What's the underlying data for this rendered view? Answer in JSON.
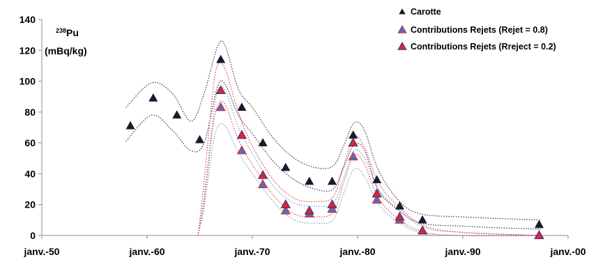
{
  "chart_data": {
    "type": "scatter",
    "title": "",
    "ylabel": {
      "isotope": "Pu",
      "mass_number": "238",
      "unit": "(mBq/kg)"
    },
    "xlabel": "",
    "xlim": [
      "1950-01",
      "2000-01"
    ],
    "ylim": [
      0,
      140
    ],
    "x_ticks": [
      "janv.-50",
      "janv.-60",
      "janv.-70",
      "janv.-80",
      "janv.-90",
      "janv.-00"
    ],
    "y_ticks": [
      0,
      20,
      40,
      60,
      80,
      100,
      120,
      140
    ],
    "grid": false,
    "legend_position": "top-right",
    "series": [
      {
        "name": "Carotte",
        "marker": "triangle",
        "color": "#1a1a2e",
        "x": [
          "1958-06",
          "1960-08",
          "1962-11",
          "1965-01",
          "1967-01",
          "1969-01",
          "1971-01",
          "1973-03",
          "1975-06",
          "1977-08",
          "1979-08",
          "1981-11",
          "1984-01",
          "1986-03",
          "1997-04"
        ],
        "y": [
          71,
          89,
          78,
          62,
          114,
          83,
          60,
          44,
          35,
          35,
          65,
          36,
          19,
          10,
          7
        ]
      },
      {
        "name": "Contributions Rejets (Rejet = 0.8)",
        "marker": "triangle",
        "color": "#4472c4",
        "edge": "#e03030",
        "x": [
          "1967-01",
          "1969-01",
          "1971-01",
          "1973-03",
          "1975-06",
          "1977-08",
          "1979-08",
          "1981-11",
          "1984-01",
          "1986-03",
          "1997-04"
        ],
        "y": [
          83,
          55,
          33,
          16,
          14,
          17,
          51,
          23,
          10,
          3,
          0
        ]
      },
      {
        "name": "Contributions Rejets (Rreject = 0.2)",
        "marker": "triangle",
        "color": "#e8202a",
        "edge": "#3a3a8a",
        "x": [
          "1967-01",
          "1969-01",
          "1971-01",
          "1973-03",
          "1975-06",
          "1977-08",
          "1979-08",
          "1981-11",
          "1984-01",
          "1986-03",
          "1997-04"
        ],
        "y": [
          94,
          65,
          39,
          20,
          16,
          20,
          60,
          27,
          12,
          3,
          0
        ]
      }
    ],
    "envelopes": [
      {
        "series": "Carotte",
        "color": "#333333",
        "upper": {
          "x": [
            "1958-01",
            "1960-06",
            "1962-06",
            "1964-03",
            "1965-06",
            "1966-09",
            "1967-06",
            "1968-09",
            "1970-01",
            "1972-01",
            "1974-01",
            "1976-01",
            "1977-09",
            "1978-09",
            "1979-09",
            "1980-09",
            "1982-01",
            "1984-01",
            "1986-01",
            "1990-01",
            "1997-06"
          ],
          "y": [
            83,
            99,
            92,
            74,
            92,
            122,
            123,
            95,
            83,
            63,
            50,
            44,
            45,
            58,
            73,
            68,
            42,
            22,
            14,
            12,
            10
          ]
        },
        "lower": {
          "x": [
            "1958-01",
            "1960-06",
            "1962-06",
            "1964-03",
            "1965-06",
            "1966-09",
            "1967-06",
            "1968-09",
            "1970-01",
            "1972-01",
            "1974-01",
            "1976-01",
            "1977-09",
            "1978-09",
            "1979-09",
            "1980-09",
            "1982-01",
            "1984-01",
            "1986-01",
            "1990-01",
            "1997-06"
          ],
          "y": [
            61,
            78,
            68,
            55,
            60,
            96,
            98,
            78,
            66,
            48,
            36,
            30,
            30,
            44,
            59,
            55,
            29,
            16,
            8,
            6,
            4
          ]
        }
      },
      {
        "series": "Contributions Rejets (Rejet = 0.8)",
        "color": "#6a9fd8",
        "upper": {
          "x": [
            "1964-11",
            "1965-06",
            "1966-03",
            "1966-09",
            "1967-06",
            "1968-09",
            "1970-01",
            "1972-01",
            "1974-01",
            "1976-01",
            "1977-09",
            "1978-09",
            "1979-09",
            "1980-09",
            "1982-01",
            "1984-01",
            "1986-06",
            "1990-01",
            "1997-06"
          ],
          "y": [
            0,
            25,
            70,
            93,
            94,
            70,
            53,
            32,
            21,
            19,
            21,
            37,
            55,
            50,
            30,
            16,
            5,
            2,
            0
          ]
        },
        "lower": {
          "x": [
            "1964-11",
            "1965-06",
            "1966-03",
            "1966-09",
            "1967-06",
            "1968-09",
            "1970-01",
            "1972-01",
            "1974-01",
            "1976-01",
            "1977-09",
            "1978-09",
            "1979-09",
            "1980-09",
            "1982-01",
            "1984-01",
            "1986-06",
            "1990-01",
            "1997-06"
          ],
          "y": [
            0,
            18,
            55,
            70,
            71,
            54,
            40,
            22,
            10,
            8,
            10,
            27,
            43,
            38,
            20,
            8,
            1,
            0,
            0
          ]
        }
      },
      {
        "series": "Contributions Rejets (Rreject = 0.2)",
        "color": "#e04040",
        "upper": {
          "x": [
            "1964-11",
            "1965-06",
            "1966-03",
            "1966-09",
            "1967-06",
            "1968-09",
            "1970-01",
            "1972-01",
            "1974-01",
            "1976-01",
            "1977-09",
            "1978-09",
            "1979-09",
            "1980-09",
            "1982-01",
            "1984-01",
            "1986-06",
            "1990-01",
            "1997-06"
          ],
          "y": [
            0,
            35,
            88,
            110,
            108,
            80,
            58,
            36,
            24,
            22,
            25,
            45,
            64,
            57,
            34,
            18,
            6,
            2,
            0
          ]
        },
        "lower": {
          "x": [
            "1964-11",
            "1965-06",
            "1966-03",
            "1966-09",
            "1967-06",
            "1968-09",
            "1970-01",
            "1972-01",
            "1974-01",
            "1976-01",
            "1977-09",
            "1978-09",
            "1979-09",
            "1980-09",
            "1982-01",
            "1984-01",
            "1986-06",
            "1990-01",
            "1997-06"
          ],
          "y": [
            0,
            22,
            66,
            84,
            85,
            62,
            46,
            26,
            14,
            12,
            15,
            34,
            52,
            46,
            24,
            10,
            2,
            0,
            0
          ]
        }
      }
    ]
  }
}
